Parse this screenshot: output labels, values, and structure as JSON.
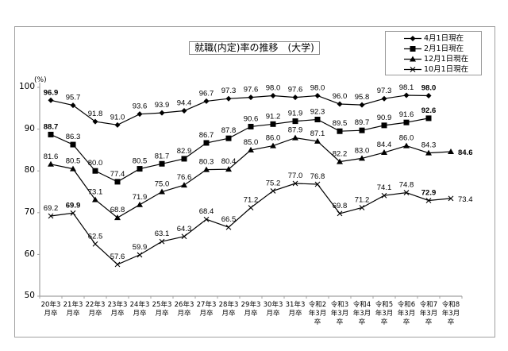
{
  "chart_data": {
    "type": "line",
    "title": "就職(内定)率の推移 (大学)",
    "ylabel": "(%)",
    "xlabel": "",
    "ylim": [
      50,
      100
    ],
    "yticks": [
      50,
      60,
      70,
      80,
      90,
      100
    ],
    "grid": false,
    "legend_position": "top-right",
    "categories": [
      "20年3月卒",
      "21年3月卒",
      "22年3月卒",
      "23年3月卒",
      "24年3月卒",
      "25年3月卒",
      "26年3月卒",
      "27年3月卒",
      "28年3月卒",
      "29年3月卒",
      "30年3月卒",
      "31年3月卒",
      "令和2年3月卒",
      "令和3年3月卒",
      "令和4年3月卒",
      "令和5年3月卒",
      "令和6年3月卒",
      "令和7年3月卒",
      "令和8年3月卒"
    ],
    "series": [
      {
        "name": "4月1日現在",
        "marker": "diamond",
        "values": [
          96.9,
          95.7,
          91.8,
          91.0,
          93.6,
          93.9,
          94.4,
          96.7,
          97.3,
          97.6,
          98.0,
          97.6,
          98.0,
          96.0,
          95.8,
          97.3,
          98.1,
          98.0,
          null
        ]
      },
      {
        "name": "2月1日現在",
        "marker": "square",
        "values": [
          88.7,
          86.3,
          80.0,
          77.4,
          80.5,
          81.7,
          82.9,
          86.7,
          87.8,
          90.6,
          91.2,
          91.9,
          92.3,
          89.5,
          89.7,
          90.9,
          91.6,
          92.6,
          null
        ]
      },
      {
        "name": "12月1日現在",
        "marker": "triangle",
        "values": [
          81.6,
          80.5,
          73.1,
          68.8,
          71.9,
          75.0,
          76.6,
          80.3,
          80.4,
          85.0,
          86.0,
          87.9,
          87.1,
          82.2,
          83.0,
          84.4,
          86.0,
          84.3,
          84.6
        ]
      },
      {
        "name": "10月1日現在",
        "marker": "x",
        "values": [
          69.2,
          69.9,
          62.5,
          57.6,
          59.9,
          63.1,
          64.3,
          68.4,
          66.5,
          71.2,
          75.2,
          77.0,
          76.8,
          69.8,
          71.2,
          74.1,
          74.8,
          72.9,
          73.4
        ]
      }
    ]
  },
  "title": "就職(内定)率の推移　(大学)",
  "yaxis": {
    "unit_label": "(%)",
    "ticks": [
      "100",
      "90",
      "80",
      "70",
      "60",
      "50"
    ]
  },
  "legend": [
    {
      "label": "4月1日現在",
      "icon": "diamond-marker-icon"
    },
    {
      "label": "2月1日現在",
      "icon": "square-marker-icon"
    },
    {
      "label": "12月1日現在",
      "icon": "triangle-marker-icon"
    },
    {
      "label": "10月1日現在",
      "icon": "x-marker-icon"
    }
  ],
  "xaxis": {
    "labels": [
      "20年3\n月卒",
      "21年3\n月卒",
      "22年3\n月卒",
      "23年3\n月卒",
      "24年3\n月卒",
      "25年3\n月卒",
      "26年3\n月卒",
      "27年3\n月卒",
      "28年3\n月卒",
      "29年3\n月卒",
      "30年3\n月卒",
      "31年3\n月卒",
      "令和2\n年3月\n卒",
      "令和3\n年3月\n卒",
      "令和4\n年3月\n卒",
      "令和5\n年3月\n卒",
      "令和6\n年3月\n卒",
      "令和7\n年3月\n卒",
      "令和8\n年3月\n卒"
    ]
  },
  "data_labels": {
    "4月1日現在": [
      "96.9",
      "95.7",
      "91.8",
      "91.0",
      "93.6",
      "93.9",
      "94.4",
      "96.7",
      "97.3",
      "97.6",
      "98.0",
      "97.6",
      "98.0",
      "96.0",
      "95.8",
      "97.3",
      "98.1",
      "98.0",
      null
    ],
    "2月1日現在": [
      "88.7",
      "86.3",
      "80.0",
      "77.4",
      "80.5",
      "81.7",
      "82.9",
      "86.7",
      "87.8",
      "90.6",
      "91.2",
      "91.9",
      "92.3",
      "89.5",
      "89.7",
      "90.9",
      "91.6",
      "92.6",
      null
    ],
    "12月1日現在": [
      "81.6",
      "80.5",
      "73.1",
      "68.8",
      "71.9",
      "75.0",
      "76.6",
      "80.3",
      "80.4",
      "85.0",
      "86.0",
      "87.9",
      "87.1",
      "82.2",
      "83.0",
      "84.4",
      "86.0",
      "84.3",
      "84.6"
    ],
    "10月1日現在": [
      "69.2",
      "69.9",
      "62.5",
      "57.6",
      "59.9",
      "63.1",
      "64.3",
      "68.4",
      "66.5",
      "71.2",
      "75.2",
      "77.0",
      "76.8",
      "69.8",
      "71.2",
      "74.1",
      "74.8",
      "72.9",
      "73.4"
    ]
  },
  "colors": {
    "line": "#000000",
    "axis": "#a0a0a0",
    "frame": "#a0a0a0"
  }
}
